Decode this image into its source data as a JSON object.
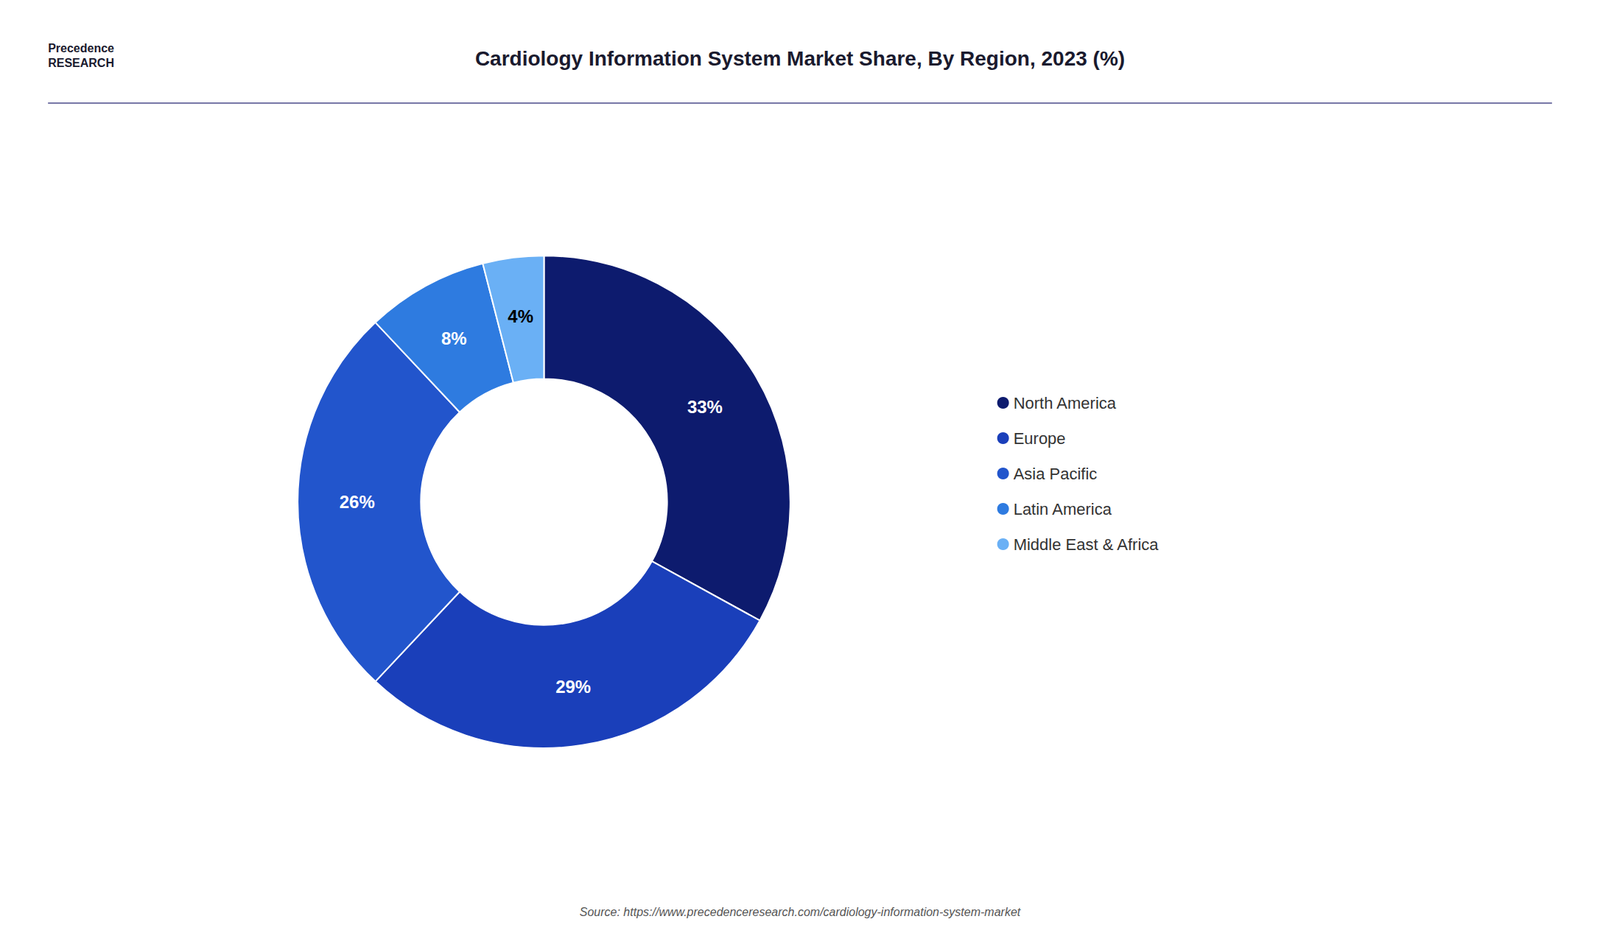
{
  "chart_data": {
    "type": "donut",
    "title": "Cardiology Information System Market Share, By Region, 2023 (%)",
    "categories": [
      "North America",
      "Europe",
      "Asia Pacific",
      "Latin America",
      "Middle East & Africa"
    ],
    "values": [
      33,
      29,
      26,
      8,
      4
    ],
    "value_labels": [
      "33%",
      "29%",
      "26%",
      "8%",
      "4%"
    ],
    "colors": [
      "#0d1b6e",
      "#1a3fba",
      "#2255cc",
      "#2e7be0",
      "#6ab0f5"
    ],
    "data_labels": true,
    "legend": "right",
    "annotations": [
      "Source: https://www.precedenceresearch.com/cardiology-information-system-market",
      "Precedence\nRESEARCH"
    ]
  }
}
